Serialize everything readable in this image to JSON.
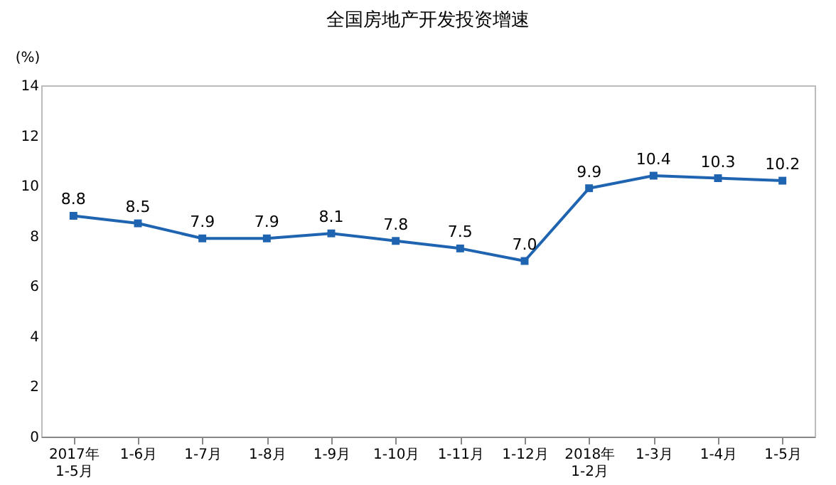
{
  "chart_data": {
    "type": "line",
    "title": "全国房地产开发投资增速",
    "ylabel": "(%)",
    "categories": [
      "2017年\n1-5月",
      "1-6月",
      "1-7月",
      "1-8月",
      "1-9月",
      "1-10月",
      "1-11月",
      "1-12月",
      "2018年\n1-2月",
      "1-3月",
      "1-4月",
      "1-5月"
    ],
    "series": [
      {
        "color": "#1f64b0",
        "values": [
          8.8,
          8.5,
          7.9,
          7.9,
          8.1,
          7.8,
          7.5,
          7.0,
          9.9,
          10.4,
          10.3,
          10.2
        ],
        "value_labels": [
          "8.8",
          "8.5",
          "7.9",
          "7.9",
          "8.1",
          "7.8",
          "7.5",
          "7.0",
          "9.9",
          "10.4",
          "10.3",
          "10.2"
        ]
      }
    ],
    "ylim": [
      0,
      14
    ],
    "yticks": [
      0,
      2,
      4,
      6,
      8,
      10,
      12,
      14
    ],
    "grid": false,
    "marker": "square",
    "line_style": "solid"
  }
}
